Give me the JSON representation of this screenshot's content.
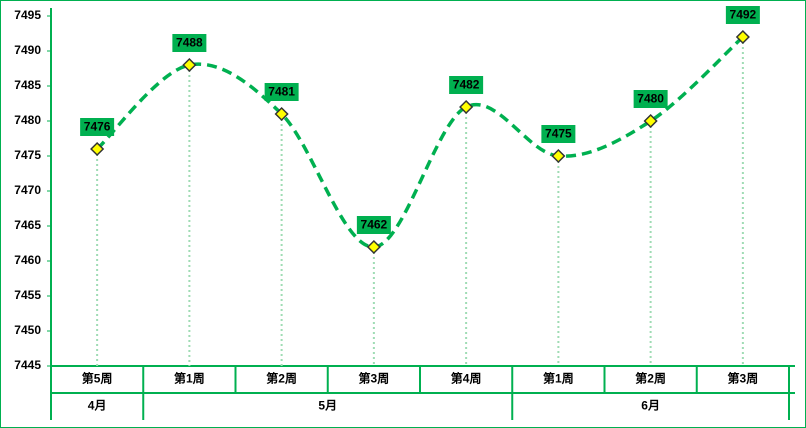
{
  "chart_data": {
    "type": "line",
    "categories": [
      "第5周",
      "第1周",
      "第2周",
      "第3周",
      "第4周",
      "第1周",
      "第2周",
      "第3周"
    ],
    "months": [
      "4月",
      "5月",
      null,
      null,
      null,
      "6月",
      null,
      null
    ],
    "series": [
      {
        "color": "#00b050",
        "values": [
          7476,
          7488,
          7481,
          7462,
          7482,
          7475,
          7480,
          7492
        ]
      }
    ],
    "marker_color": "#ffff00",
    "ylim": [
      7445,
      7495
    ],
    "yticks": [
      7445,
      7450,
      7455,
      7460,
      7465,
      7470,
      7475,
      7480,
      7485,
      7490,
      7495
    ],
    "drop_lines": true,
    "data_labels": true
  }
}
